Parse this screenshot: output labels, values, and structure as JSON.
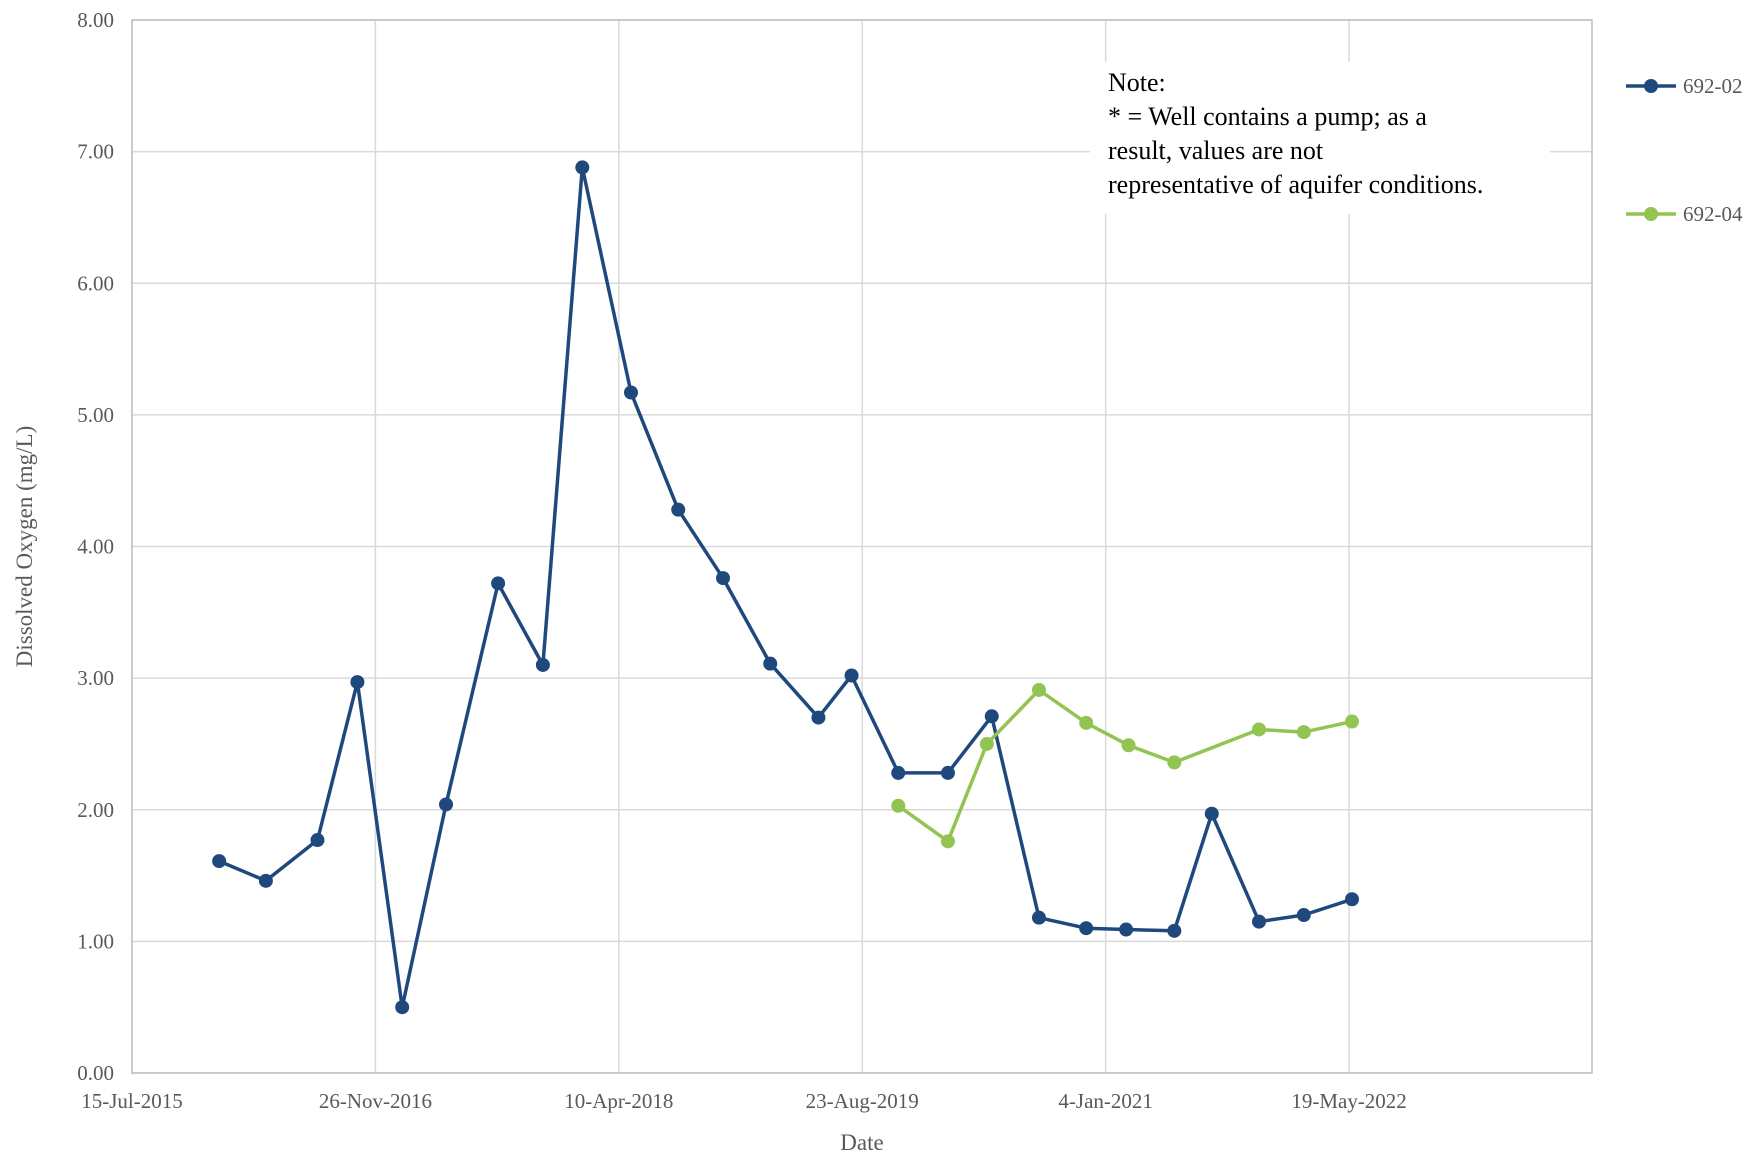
{
  "chart_data": {
    "type": "line",
    "title": "",
    "xlabel": "Date",
    "ylabel": "Dissolved Oxygen (mg/L)",
    "x_axis": {
      "type": "date",
      "min": "2015-07-15",
      "max": "2023-09-30",
      "tick_labels": [
        "15-Jul-2015",
        "26-Nov-2016",
        "10-Apr-2018",
        "23-Aug-2019",
        "4-Jan-2021",
        "19-May-2022"
      ],
      "tick_dates": [
        "2015-07-15",
        "2016-11-26",
        "2018-04-10",
        "2019-08-23",
        "2021-01-04",
        "2022-05-19"
      ]
    },
    "y_axis": {
      "min": 0,
      "max": 8,
      "tick_labels": [
        "0.00",
        "1.00",
        "2.00",
        "3.00",
        "4.00",
        "5.00",
        "6.00",
        "7.00",
        "8.00"
      ],
      "tick_values": [
        0,
        1,
        2,
        3,
        4,
        5,
        6,
        7,
        8
      ]
    },
    "grid": true,
    "legend_position": "right",
    "series": [
      {
        "name": "692-02",
        "color": "#1f497d",
        "points": [
          {
            "x": "2016-01-10",
            "y": 1.61
          },
          {
            "x": "2016-04-15",
            "y": 1.46
          },
          {
            "x": "2016-07-30",
            "y": 1.77
          },
          {
            "x": "2016-10-20",
            "y": 2.97
          },
          {
            "x": "2017-01-20",
            "y": 0.5
          },
          {
            "x": "2017-04-20",
            "y": 2.04
          },
          {
            "x": "2017-08-05",
            "y": 3.72
          },
          {
            "x": "2017-11-05",
            "y": 3.1
          },
          {
            "x": "2018-01-25",
            "y": 6.88
          },
          {
            "x": "2018-05-05",
            "y": 5.17
          },
          {
            "x": "2018-08-10",
            "y": 4.28
          },
          {
            "x": "2018-11-10",
            "y": 3.76
          },
          {
            "x": "2019-02-15",
            "y": 3.11
          },
          {
            "x": "2019-05-25",
            "y": 2.7
          },
          {
            "x": "2019-08-01",
            "y": 3.02
          },
          {
            "x": "2019-11-05",
            "y": 2.28
          },
          {
            "x": "2020-02-15",
            "y": 2.28
          },
          {
            "x": "2020-05-15",
            "y": 2.71
          },
          {
            "x": "2020-08-20",
            "y": 1.18
          },
          {
            "x": "2020-11-25",
            "y": 1.1
          },
          {
            "x": "2021-02-15",
            "y": 1.09
          },
          {
            "x": "2021-05-25",
            "y": 1.08
          },
          {
            "x": "2021-08-10",
            "y": 1.97
          },
          {
            "x": "2021-11-15",
            "y": 1.15
          },
          {
            "x": "2022-02-15",
            "y": 1.2
          },
          {
            "x": "2022-05-25",
            "y": 1.32
          }
        ]
      },
      {
        "name": "692-04",
        "color": "#92c353",
        "points": [
          {
            "x": "2019-11-05",
            "y": 2.03
          },
          {
            "x": "2020-02-15",
            "y": 1.76
          },
          {
            "x": "2020-05-05",
            "y": 2.5
          },
          {
            "x": "2020-08-20",
            "y": 2.91
          },
          {
            "x": "2020-11-25",
            "y": 2.66
          },
          {
            "x": "2021-02-20",
            "y": 2.49
          },
          {
            "x": "2021-05-25",
            "y": 2.36
          },
          {
            "x": "2021-11-15",
            "y": 2.61
          },
          {
            "x": "2022-02-15",
            "y": 2.59
          },
          {
            "x": "2022-05-25",
            "y": 2.67
          }
        ]
      }
    ],
    "annotation": {
      "lines": [
        "Note:",
        "* = Well contains a pump; as a",
        "result, values are not",
        "representative of aquifer conditions."
      ]
    }
  }
}
